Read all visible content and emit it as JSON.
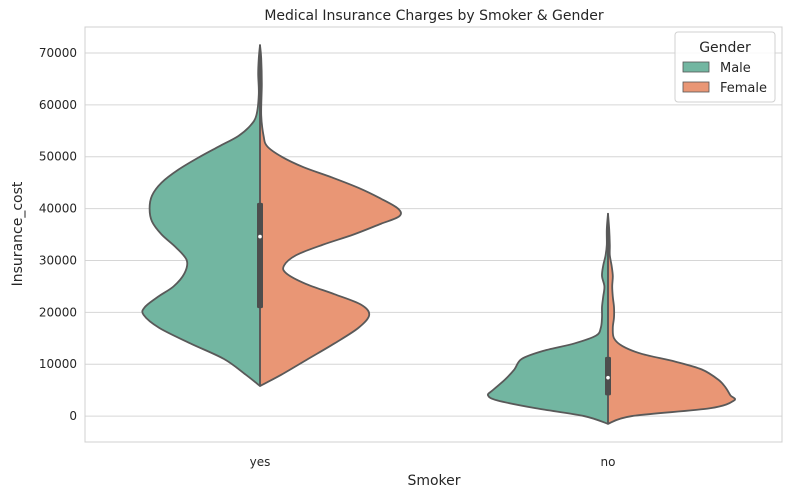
{
  "chart_data": {
    "type": "violin",
    "title": "Medical Insurance Charges by Smoker & Gender",
    "xlabel": "Smoker",
    "ylabel": "Insurance_cost",
    "categories": [
      "yes",
      "no"
    ],
    "ylim": [
      -5000,
      75000
    ],
    "yticks": [
      "0",
      "10000",
      "20000",
      "30000",
      "40000",
      "50000",
      "60000",
      "70000"
    ],
    "grid": true,
    "legend": {
      "title": "Gender",
      "position": "top-right"
    },
    "series": [
      {
        "name": "Male",
        "color": "#72b6a1"
      },
      {
        "name": "Female",
        "color": "#e99675"
      }
    ],
    "violins": [
      {
        "category": "yes",
        "median": 34600,
        "q1": 20800,
        "q3": 41100,
        "left": [
          [
            5800,
            0
          ],
          [
            8000,
            0.12
          ],
          [
            11000,
            0.3
          ],
          [
            14000,
            0.58
          ],
          [
            17000,
            0.84
          ],
          [
            19500,
            0.97
          ],
          [
            21000,
            0.96
          ],
          [
            23000,
            0.85
          ],
          [
            25000,
            0.72
          ],
          [
            27500,
            0.63
          ],
          [
            30000,
            0.61
          ],
          [
            32500,
            0.7
          ],
          [
            35000,
            0.82
          ],
          [
            37500,
            0.9
          ],
          [
            40000,
            0.92
          ],
          [
            42500,
            0.9
          ],
          [
            45000,
            0.82
          ],
          [
            47500,
            0.68
          ],
          [
            50000,
            0.5
          ],
          [
            52000,
            0.34
          ],
          [
            54000,
            0.18
          ],
          [
            56000,
            0.08
          ],
          [
            58000,
            0.03
          ],
          [
            62000,
            0.01
          ],
          [
            66000,
            0.015
          ],
          [
            69000,
            0.01
          ],
          [
            71500,
            0
          ]
        ],
        "right": [
          [
            5800,
            0
          ],
          [
            8000,
            0.18
          ],
          [
            11000,
            0.4
          ],
          [
            14000,
            0.62
          ],
          [
            17000,
            0.82
          ],
          [
            19500,
            0.91
          ],
          [
            21500,
            0.84
          ],
          [
            23500,
            0.62
          ],
          [
            25500,
            0.38
          ],
          [
            27500,
            0.22
          ],
          [
            29000,
            0.2
          ],
          [
            31000,
            0.3
          ],
          [
            33000,
            0.52
          ],
          [
            35000,
            0.78
          ],
          [
            37000,
            1.0
          ],
          [
            38500,
            1.16
          ],
          [
            40000,
            1.15
          ],
          [
            42000,
            1.0
          ],
          [
            44000,
            0.82
          ],
          [
            46000,
            0.6
          ],
          [
            48000,
            0.36
          ],
          [
            50000,
            0.18
          ],
          [
            52000,
            0.06
          ],
          [
            54000,
            0.03
          ],
          [
            58000,
            0.01
          ],
          [
            64000,
            0.015
          ],
          [
            69000,
            0.01
          ],
          [
            71500,
            0
          ]
        ]
      },
      {
        "category": "no",
        "median": 7400,
        "q1": 4000,
        "q3": 11400,
        "left": [
          [
            -1500,
            0
          ],
          [
            0,
            0.2
          ],
          [
            1500,
            0.6
          ],
          [
            3000,
            0.92
          ],
          [
            4000,
            1.0
          ],
          [
            5000,
            0.96
          ],
          [
            7000,
            0.86
          ],
          [
            9000,
            0.78
          ],
          [
            11000,
            0.72
          ],
          [
            12500,
            0.55
          ],
          [
            14000,
            0.28
          ],
          [
            15500,
            0.1
          ],
          [
            17000,
            0.06
          ],
          [
            19000,
            0.05
          ],
          [
            21000,
            0.05
          ],
          [
            23000,
            0.04
          ],
          [
            25000,
            0.03
          ],
          [
            27000,
            0.05
          ],
          [
            29000,
            0.04
          ],
          [
            31000,
            0.02
          ],
          [
            33000,
            0.01
          ],
          [
            36000,
            0.01
          ],
          [
            39000,
            0
          ]
        ],
        "right": [
          [
            -1500,
            0
          ],
          [
            0,
            0.2
          ],
          [
            1500,
            0.85
          ],
          [
            3000,
            1.05
          ],
          [
            4000,
            1.02
          ],
          [
            5500,
            0.98
          ],
          [
            7000,
            0.92
          ],
          [
            9000,
            0.78
          ],
          [
            10500,
            0.56
          ],
          [
            12000,
            0.28
          ],
          [
            13500,
            0.12
          ],
          [
            15000,
            0.05
          ],
          [
            17000,
            0.04
          ],
          [
            19000,
            0.05
          ],
          [
            21000,
            0.05
          ],
          [
            23000,
            0.04
          ],
          [
            25000,
            0.035
          ],
          [
            27000,
            0.04
          ],
          [
            29000,
            0.03
          ],
          [
            31000,
            0.015
          ],
          [
            33000,
            0.015
          ],
          [
            36000,
            0.01
          ],
          [
            39000,
            0
          ]
        ]
      }
    ]
  }
}
